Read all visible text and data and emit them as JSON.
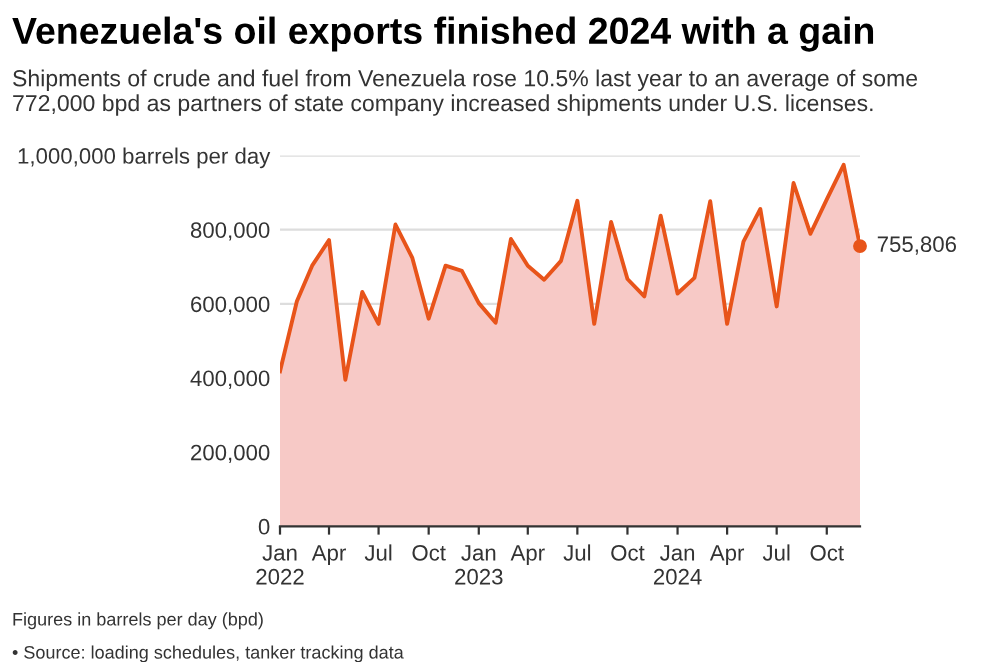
{
  "chart_data": {
    "type": "area",
    "title": "Venezuela's oil exports finished 2024 with a gain",
    "subtitle": "Shipments of crude and fuel from Venezuela rose 10.5% last year to an average of some 772,000 bpd as partners of state company increased shipments under U.S. licenses.",
    "x": [
      "2022-01",
      "2022-02",
      "2022-03",
      "2022-04",
      "2022-05",
      "2022-06",
      "2022-07",
      "2022-08",
      "2022-09",
      "2022-10",
      "2022-11",
      "2022-12",
      "2023-01",
      "2023-02",
      "2023-03",
      "2023-04",
      "2023-05",
      "2023-06",
      "2023-07",
      "2023-08",
      "2023-09",
      "2023-10",
      "2023-11",
      "2023-12",
      "2024-01",
      "2024-02",
      "2024-03",
      "2024-04",
      "2024-05",
      "2024-06",
      "2024-07",
      "2024-08",
      "2024-09",
      "2024-10",
      "2024-11",
      "2024-12"
    ],
    "series": [
      {
        "color": "#e8541a",
        "values": [
          418000,
          607000,
          703000,
          772000,
          395000,
          632000,
          546000,
          814000,
          724000,
          560000,
          703000,
          689000,
          602000,
          549000,
          775000,
          703000,
          665000,
          716000,
          878000,
          546000,
          821000,
          667000,
          620000,
          838000,
          628000,
          670000,
          877000,
          546000,
          768000,
          856000,
          593000,
          926000,
          789000,
          882000,
          975000,
          755806
        ]
      }
    ],
    "xlim": [
      "2022-01",
      "2024-12"
    ],
    "xticks": [
      {
        "value": "2022-01",
        "label": "Jan\n2022"
      },
      {
        "value": "2022-04",
        "label": "Apr"
      },
      {
        "value": "2022-07",
        "label": "Jul"
      },
      {
        "value": "2022-10",
        "label": "Oct"
      },
      {
        "value": "2023-01",
        "label": "Jan\n2023"
      },
      {
        "value": "2023-04",
        "label": "Apr"
      },
      {
        "value": "2023-07",
        "label": "Jul"
      },
      {
        "value": "2023-10",
        "label": "Oct"
      },
      {
        "value": "2024-01",
        "label": "Jan\n2024"
      },
      {
        "value": "2024-04",
        "label": "Apr"
      },
      {
        "value": "2024-07",
        "label": "Jul"
      },
      {
        "value": "2024-10",
        "label": "Oct"
      }
    ],
    "ylim": [
      0,
      1000000
    ],
    "yticks": [
      {
        "value": 0,
        "label": "0"
      },
      {
        "value": 200000,
        "label": "200,000"
      },
      {
        "value": 400000,
        "label": "400,000"
      },
      {
        "value": 600000,
        "label": "600,000"
      },
      {
        "value": 800000,
        "label": "800,000"
      },
      {
        "value": 1000000,
        "label": "1,000,000 barrels per day"
      }
    ],
    "grid": "y",
    "annotations": [
      {
        "text": "755,806",
        "x": "2024-12",
        "y": 755806
      },
      "Figures in barrels per day (bpd)",
      "• Source: loading schedules, tanker tracking data"
    ]
  }
}
